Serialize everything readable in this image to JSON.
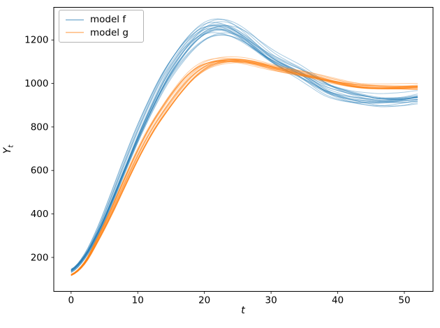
{
  "figure": {
    "background": "#ffffff",
    "spine_color": "#000000",
    "tick_color": "#000000",
    "text_color": "#000000"
  },
  "chart_data": {
    "type": "line",
    "title": "",
    "xlabel": "t",
    "ylabel": "Y_t",
    "ylabel_parts": {
      "main": "Y",
      "sub": "t"
    },
    "xlim": [
      -2.6,
      54.3
    ],
    "ylim": [
      44,
      1350
    ],
    "xticks": [
      0,
      10,
      20,
      30,
      40,
      50
    ],
    "yticks": [
      200,
      400,
      600,
      800,
      1000,
      1200
    ],
    "grid": false,
    "legend": {
      "position": "upper left"
    },
    "x": [
      0,
      2,
      4,
      6,
      8,
      10,
      12,
      14,
      16,
      18,
      20,
      22,
      24,
      26,
      28,
      30,
      32,
      34,
      36,
      38,
      40,
      42,
      44,
      46,
      48,
      50,
      52
    ],
    "series": [
      {
        "name": "model f",
        "color": "#1f77b4",
        "values": [
          140,
          205,
          320,
          465,
          620,
          770,
          905,
          1025,
          1120,
          1195,
          1245,
          1263,
          1252,
          1218,
          1170,
          1125,
          1090,
          1058,
          1020,
          980,
          955,
          938,
          928,
          922,
          924,
          930,
          940
        ],
        "ensemble_runs": 20,
        "spread_frac": 0.022,
        "spread_base": 4
      },
      {
        "name": "model g",
        "color": "#ff7f0e",
        "values": [
          120,
          175,
          285,
          410,
          545,
          675,
          790,
          885,
          970,
          1040,
          1085,
          1105,
          1110,
          1105,
          1092,
          1076,
          1062,
          1050,
          1037,
          1022,
          1008,
          996,
          988,
          985,
          984,
          985,
          986
        ],
        "ensemble_runs": 20,
        "spread_frac": 0.011,
        "spread_base": 3
      }
    ],
    "line_alpha": 0.4,
    "line_width": 1.0
  }
}
